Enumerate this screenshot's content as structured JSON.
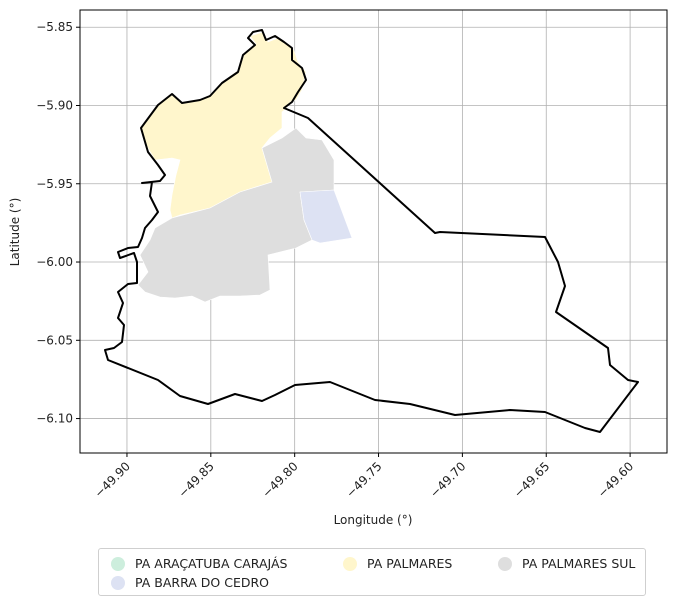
{
  "chart_data": {
    "type": "map",
    "title": "",
    "xlabel": "Longitude (°)",
    "ylabel": "Latitude (°)",
    "xlim": [
      -49.928,
      -49.578
    ],
    "ylim": [
      -6.122,
      -5.839
    ],
    "grid": true,
    "x_ticks": [
      -49.9,
      -49.85,
      -49.8,
      -49.75,
      -49.7,
      -49.65,
      -49.6
    ],
    "x_tick_labels": [
      "−49.90",
      "−49.85",
      "−49.80",
      "−49.75",
      "−49.70",
      "−49.65",
      "−49.60"
    ],
    "y_ticks": [
      -5.85,
      -5.9,
      -5.95,
      -6.0,
      -6.05,
      -6.1
    ],
    "y_tick_labels": [
      "−5.85",
      "−5.90",
      "−5.95",
      "−6.00",
      "−6.05",
      "−6.10"
    ],
    "legend_position": "bottom",
    "legend": [
      {
        "label": "PA ARAÇATUBA CARAJÁS",
        "color": "#cdeedd"
      },
      {
        "label": "PA BARRA DO CEDRO",
        "color": "#dde2f3"
      },
      {
        "label": "PA PALMARES",
        "color": "#fff6cc"
      },
      {
        "label": "PA PALMARES SUL",
        "color": "#dedede"
      }
    ]
  }
}
